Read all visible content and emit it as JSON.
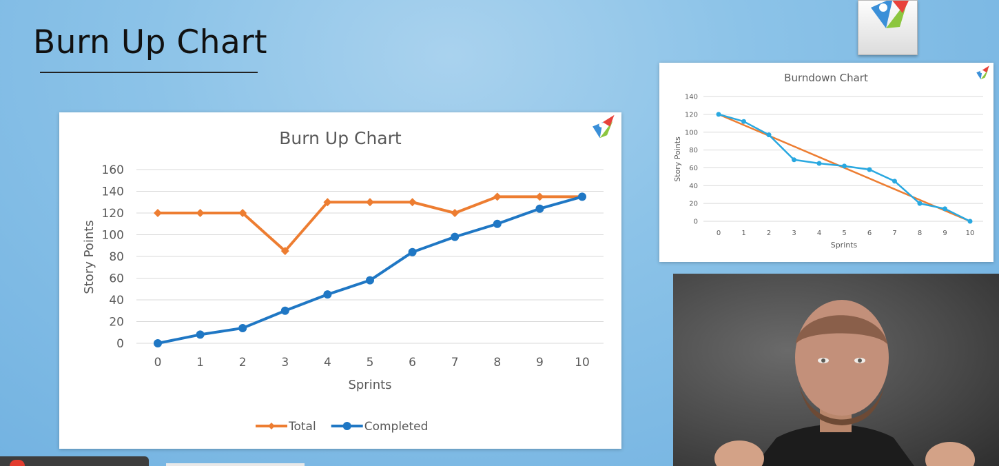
{
  "slide": {
    "title": "Burn Up Chart"
  },
  "chart_data": [
    {
      "type": "line",
      "title": "Burn Up Chart",
      "xlabel": "Sprints",
      "ylabel": "Story Points",
      "x": [
        0,
        1,
        2,
        3,
        4,
        5,
        6,
        7,
        8,
        9,
        10
      ],
      "ylim": [
        0,
        160
      ],
      "yticks": [
        0,
        20,
        40,
        60,
        80,
        100,
        120,
        140,
        160
      ],
      "grid": true,
      "legend": "bottom",
      "series": [
        {
          "name": "Total",
          "color": "#ed7d31",
          "marker": "diamond",
          "values": [
            120,
            120,
            120,
            85,
            130,
            130,
            130,
            120,
            135,
            135,
            135
          ]
        },
        {
          "name": "Completed",
          "color": "#1f77c4",
          "marker": "circle",
          "values": [
            0,
            8,
            14,
            30,
            45,
            58,
            84,
            98,
            110,
            124,
            135
          ]
        }
      ]
    },
    {
      "type": "line",
      "title": "Burndown Chart",
      "xlabel": "Sprints",
      "ylabel": "Story Points",
      "x": [
        0,
        1,
        2,
        3,
        4,
        5,
        6,
        7,
        8,
        9,
        10
      ],
      "ylim": [
        0,
        140
      ],
      "yticks": [
        0,
        20,
        40,
        60,
        80,
        100,
        120,
        140
      ],
      "grid": true,
      "legend": "none",
      "series": [
        {
          "color": "#ed7d31",
          "marker": "none",
          "values": [
            120,
            108,
            96,
            84,
            72,
            60,
            48,
            36,
            24,
            12,
            0
          ]
        },
        {
          "color": "#29a8e0",
          "marker": "circle",
          "values": [
            120,
            112,
            97,
            69,
            65,
            62,
            58,
            45,
            20,
            14,
            0
          ]
        }
      ]
    }
  ],
  "icons": {
    "logo": "mountain-checkmark-logo-icon",
    "webcam": "presenter-video-feed"
  },
  "colors": {
    "background": "#8cc3e8",
    "logo_red": "#e8423b",
    "logo_blue": "#3a8fd8",
    "logo_green": "#8cc63f"
  }
}
